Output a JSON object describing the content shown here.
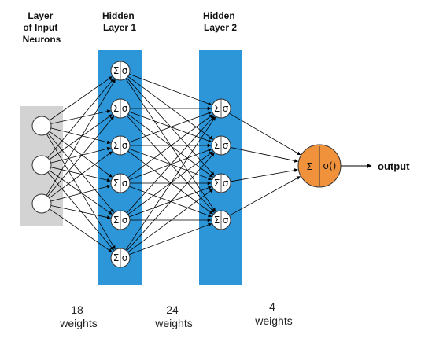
{
  "columns": {
    "input": {
      "title_lines": [
        "Layer",
        "of Input",
        "Neurons"
      ]
    },
    "hidden1": {
      "title_lines": [
        "Hidden",
        "Layer 1"
      ]
    },
    "hidden2": {
      "title_lines": [
        "Hidden",
        "Layer 2"
      ]
    }
  },
  "node_symbols": {
    "sum": "Σ",
    "sigma": "σ",
    "output_activation": "σ()"
  },
  "output_label": "output",
  "weights": [
    {
      "count": "18",
      "unit": "weights"
    },
    {
      "count": "24",
      "unit": "weights"
    },
    {
      "count": "4",
      "unit": "weights"
    }
  ],
  "colors": {
    "input_panel": "#d3d3d3",
    "hidden_panel": "#2c96d8",
    "output_node": "#f0913c",
    "node_fill": "#ffffff",
    "line": "#000000"
  },
  "network": {
    "input_nodes": 3,
    "hidden1_nodes": 6,
    "hidden2_nodes": 4,
    "output_nodes": 1
  }
}
